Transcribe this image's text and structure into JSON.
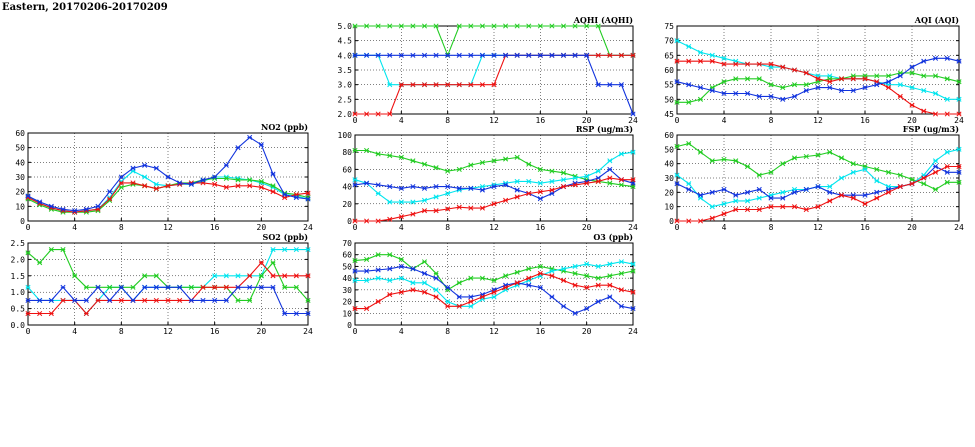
{
  "page": {
    "title": "Eastern, 20170206-20170209"
  },
  "colors": {
    "green": "#22cc22",
    "cyan": "#00e5ee",
    "blue": "#1133dd",
    "red": "#ee1111",
    "grid": "#000000"
  },
  "chart_data": [
    {
      "id": "aqhi",
      "type": "line",
      "title": "AQHI (AQHI)",
      "ylim": [
        2.0,
        5.0
      ],
      "yticks": [
        "2.0",
        "2.5",
        "3.0",
        "3.5",
        "4.0",
        "4.5",
        "5.0"
      ],
      "xlim": [
        0,
        24
      ],
      "xticks": [
        "0",
        "4",
        "8",
        "12",
        "16",
        "20",
        "24"
      ],
      "grid": true,
      "series": [
        {
          "color": "green",
          "values": [
            5,
            5,
            5,
            5,
            5,
            5,
            5,
            5,
            4,
            5,
            5,
            5,
            5,
            5,
            5,
            5,
            5,
            5,
            5,
            5,
            5,
            5,
            4,
            4,
            4
          ]
        },
        {
          "color": "cyan",
          "values": [
            4,
            4,
            4,
            3,
            3,
            3,
            3,
            3,
            3,
            3,
            3,
            4,
            4,
            4,
            4,
            4,
            4,
            4,
            4,
            4,
            4,
            4,
            4,
            4,
            4
          ]
        },
        {
          "color": "red",
          "values": [
            2,
            2,
            2,
            2,
            3,
            3,
            3,
            3,
            3,
            3,
            3,
            3,
            3,
            4,
            4,
            4,
            4,
            4,
            4,
            4,
            4,
            4,
            4,
            4,
            4
          ]
        },
        {
          "color": "blue",
          "values": [
            4,
            4,
            4,
            4,
            4,
            4,
            4,
            4,
            4,
            4,
            4,
            4,
            4,
            4,
            4,
            4,
            4,
            4,
            4,
            4,
            4,
            3,
            3,
            3,
            2
          ]
        }
      ]
    },
    {
      "id": "aqi",
      "type": "line",
      "title": "AQI (AQI)",
      "ylim": [
        45,
        75
      ],
      "yticks": [
        "45",
        "50",
        "55",
        "60",
        "65",
        "70",
        "75"
      ],
      "xlim": [
        0,
        24
      ],
      "xticks": [
        "0",
        "4",
        "8",
        "12",
        "16",
        "20",
        "24"
      ],
      "grid": true,
      "series": [
        {
          "color": "cyan",
          "values": [
            70,
            68,
            66,
            65,
            64,
            63,
            62,
            62,
            61,
            61,
            60,
            59,
            58,
            58,
            57,
            57,
            57,
            56,
            55,
            55,
            54,
            53,
            52,
            50,
            50
          ]
        },
        {
          "color": "green",
          "values": [
            49,
            49,
            50,
            54,
            56,
            57,
            57,
            57,
            55,
            54,
            55,
            55,
            56,
            57,
            57,
            58,
            58,
            58,
            58,
            59,
            59,
            58,
            58,
            57,
            56
          ]
        },
        {
          "color": "red",
          "values": [
            63,
            63,
            63,
            63,
            62,
            62,
            62,
            62,
            62,
            61,
            60,
            59,
            57,
            56,
            57,
            57,
            57,
            56,
            54,
            51,
            48,
            46,
            45,
            45,
            45
          ]
        },
        {
          "color": "blue",
          "values": [
            56,
            55,
            54,
            53,
            52,
            52,
            52,
            51,
            51,
            50,
            51,
            53,
            54,
            54,
            53,
            53,
            54,
            55,
            56,
            58,
            61,
            63,
            64,
            64,
            63
          ]
        }
      ]
    },
    {
      "id": "no2",
      "type": "line",
      "title": "NO2 (ppb)",
      "ylim": [
        0,
        60
      ],
      "yticks": [
        "0",
        "10",
        "20",
        "30",
        "40",
        "50",
        "60"
      ],
      "xlim": [
        0,
        24
      ],
      "xticks": [
        "0",
        "4",
        "8",
        "12",
        "16",
        "20",
        "24"
      ],
      "grid": true,
      "series": [
        {
          "color": "cyan",
          "values": [
            17,
            12,
            9,
            7,
            6,
            7,
            8,
            16,
            27,
            34,
            30,
            25,
            24,
            25,
            25,
            27,
            30,
            30,
            29,
            28,
            26,
            23,
            18,
            17,
            15
          ]
        },
        {
          "color": "green",
          "values": [
            15,
            11,
            8,
            6,
            6,
            6,
            7,
            14,
            23,
            25,
            24,
            22,
            24,
            26,
            26,
            28,
            29,
            29,
            28,
            28,
            27,
            24,
            19,
            18,
            16
          ]
        },
        {
          "color": "red",
          "values": [
            16,
            12,
            9,
            7,
            6,
            7,
            8,
            15,
            26,
            26,
            24,
            22,
            24,
            25,
            26,
            26,
            25,
            23,
            24,
            24,
            23,
            20,
            16,
            18,
            19
          ]
        },
        {
          "color": "blue",
          "values": [
            17,
            13,
            10,
            8,
            7,
            8,
            10,
            20,
            30,
            36,
            38,
            36,
            30,
            26,
            25,
            28,
            30,
            38,
            50,
            57,
            52,
            32,
            18,
            16,
            15
          ]
        }
      ]
    },
    {
      "id": "rsp",
      "type": "line",
      "title": "RSP (ug/m3)",
      "ylim": [
        0,
        100
      ],
      "yticks": [
        "0",
        "20",
        "40",
        "60",
        "80",
        "100"
      ],
      "xlim": [
        0,
        24
      ],
      "xticks": [
        "0",
        "4",
        "8",
        "12",
        "16",
        "20",
        "24"
      ],
      "grid": true,
      "series": [
        {
          "color": "green",
          "values": [
            82,
            82,
            78,
            76,
            74,
            70,
            66,
            62,
            58,
            60,
            65,
            68,
            70,
            72,
            74,
            66,
            60,
            58,
            56,
            52,
            48,
            46,
            44,
            42,
            40
          ]
        },
        {
          "color": "cyan",
          "values": [
            48,
            44,
            32,
            22,
            22,
            22,
            24,
            28,
            32,
            36,
            38,
            40,
            42,
            44,
            46,
            46,
            44,
            46,
            48,
            50,
            52,
            58,
            70,
            78,
            80
          ]
        },
        {
          "color": "blue",
          "values": [
            42,
            44,
            42,
            40,
            38,
            40,
            38,
            40,
            40,
            38,
            38,
            36,
            40,
            42,
            36,
            32,
            26,
            32,
            40,
            44,
            46,
            50,
            60,
            48,
            44
          ]
        },
        {
          "color": "red",
          "values": [
            0,
            0,
            0,
            2,
            5,
            8,
            12,
            12,
            14,
            16,
            15,
            15,
            20,
            24,
            28,
            32,
            34,
            36,
            40,
            42,
            44,
            46,
            50,
            48,
            48
          ]
        }
      ]
    },
    {
      "id": "fsp",
      "type": "line",
      "title": "FSP (ug/m3)",
      "ylim": [
        0,
        60
      ],
      "yticks": [
        "0",
        "10",
        "20",
        "30",
        "40",
        "50",
        "60"
      ],
      "xlim": [
        0,
        24
      ],
      "xticks": [
        "0",
        "4",
        "8",
        "12",
        "16",
        "20",
        "24"
      ],
      "grid": true,
      "series": [
        {
          "color": "green",
          "values": [
            52,
            54,
            48,
            42,
            43,
            42,
            38,
            32,
            34,
            40,
            44,
            45,
            46,
            48,
            44,
            40,
            38,
            36,
            34,
            32,
            29,
            26,
            22,
            27,
            27
          ]
        },
        {
          "color": "cyan",
          "values": [
            32,
            26,
            16,
            10,
            12,
            14,
            14,
            16,
            18,
            20,
            22,
            22,
            24,
            24,
            30,
            34,
            36,
            28,
            24,
            24,
            26,
            32,
            42,
            48,
            50
          ]
        },
        {
          "color": "blue",
          "values": [
            26,
            22,
            18,
            20,
            22,
            18,
            20,
            22,
            16,
            16,
            20,
            22,
            24,
            20,
            18,
            18,
            18,
            20,
            22,
            24,
            26,
            30,
            38,
            34,
            34
          ]
        },
        {
          "color": "red",
          "values": [
            0,
            0,
            0,
            2,
            5,
            8,
            8,
            8,
            10,
            10,
            10,
            8,
            10,
            14,
            18,
            16,
            12,
            16,
            20,
            24,
            26,
            30,
            34,
            38,
            38
          ]
        }
      ]
    },
    {
      "id": "so2",
      "type": "line",
      "title": "SO2 (ppb)",
      "ylim": [
        0,
        2.5
      ],
      "yticks": [
        "0.0",
        "0.5",
        "1.0",
        "1.5",
        "2.0",
        "2.5"
      ],
      "xlim": [
        0,
        24
      ],
      "xticks": [
        "0",
        "4",
        "8",
        "12",
        "16",
        "20",
        "24"
      ],
      "grid": true,
      "series": [
        {
          "color": "cyan",
          "values": [
            1.15,
            0.75,
            0.75,
            0.75,
            0.75,
            0.35,
            0.75,
            1.15,
            1.15,
            0.75,
            1.15,
            1.15,
            1.15,
            1.15,
            1.15,
            1.15,
            1.5,
            1.5,
            1.5,
            1.5,
            1.5,
            2.3,
            2.3,
            2.3,
            2.3
          ]
        },
        {
          "color": "green",
          "values": [
            2.2,
            1.9,
            2.3,
            2.3,
            1.5,
            1.15,
            1.15,
            1.15,
            1.15,
            1.15,
            1.5,
            1.5,
            1.15,
            1.15,
            1.15,
            1.15,
            1.15,
            1.15,
            0.75,
            0.75,
            1.5,
            1.9,
            1.15,
            1.15,
            0.75
          ]
        },
        {
          "color": "red",
          "values": [
            0.35,
            0.35,
            0.35,
            0.75,
            0.75,
            0.35,
            0.75,
            0.75,
            0.75,
            0.75,
            0.75,
            0.75,
            0.75,
            0.75,
            0.75,
            1.15,
            1.15,
            1.15,
            1.15,
            1.5,
            1.9,
            1.5,
            1.5,
            1.5,
            1.5
          ]
        },
        {
          "color": "blue",
          "values": [
            0.75,
            0.75,
            0.75,
            1.15,
            0.75,
            0.75,
            1.15,
            0.75,
            1.15,
            0.75,
            1.15,
            1.15,
            1.15,
            1.15,
            0.75,
            0.75,
            0.75,
            0.75,
            1.15,
            1.15,
            1.15,
            1.15,
            0.35,
            0.35,
            0.35
          ]
        }
      ]
    },
    {
      "id": "o3",
      "type": "line",
      "title": "O3 (ppb)",
      "ylim": [
        0,
        70
      ],
      "yticks": [
        "0",
        "10",
        "20",
        "30",
        "40",
        "50",
        "60",
        "70"
      ],
      "xlim": [
        0,
        24
      ],
      "xticks": [
        "0",
        "4",
        "8",
        "12",
        "16",
        "20",
        "24"
      ],
      "grid": true,
      "series": [
        {
          "color": "green",
          "values": [
            55,
            56,
            60,
            60,
            56,
            48,
            54,
            44,
            30,
            36,
            40,
            40,
            38,
            42,
            45,
            48,
            50,
            48,
            46,
            44,
            42,
            40,
            42,
            44,
            46
          ]
        },
        {
          "color": "cyan",
          "values": [
            38,
            38,
            40,
            38,
            40,
            36,
            36,
            30,
            20,
            16,
            16,
            22,
            24,
            30,
            34,
            38,
            42,
            46,
            48,
            50,
            52,
            50,
            52,
            54,
            52
          ]
        },
        {
          "color": "blue",
          "values": [
            46,
            46,
            47,
            48,
            50,
            48,
            44,
            40,
            32,
            24,
            24,
            26,
            30,
            34,
            36,
            34,
            32,
            24,
            16,
            10,
            14,
            20,
            24,
            16,
            14
          ]
        },
        {
          "color": "red",
          "values": [
            14,
            14,
            20,
            26,
            28,
            30,
            28,
            24,
            16,
            16,
            20,
            24,
            28,
            32,
            36,
            40,
            44,
            42,
            38,
            34,
            32,
            34,
            34,
            30,
            28
          ]
        }
      ]
    }
  ]
}
